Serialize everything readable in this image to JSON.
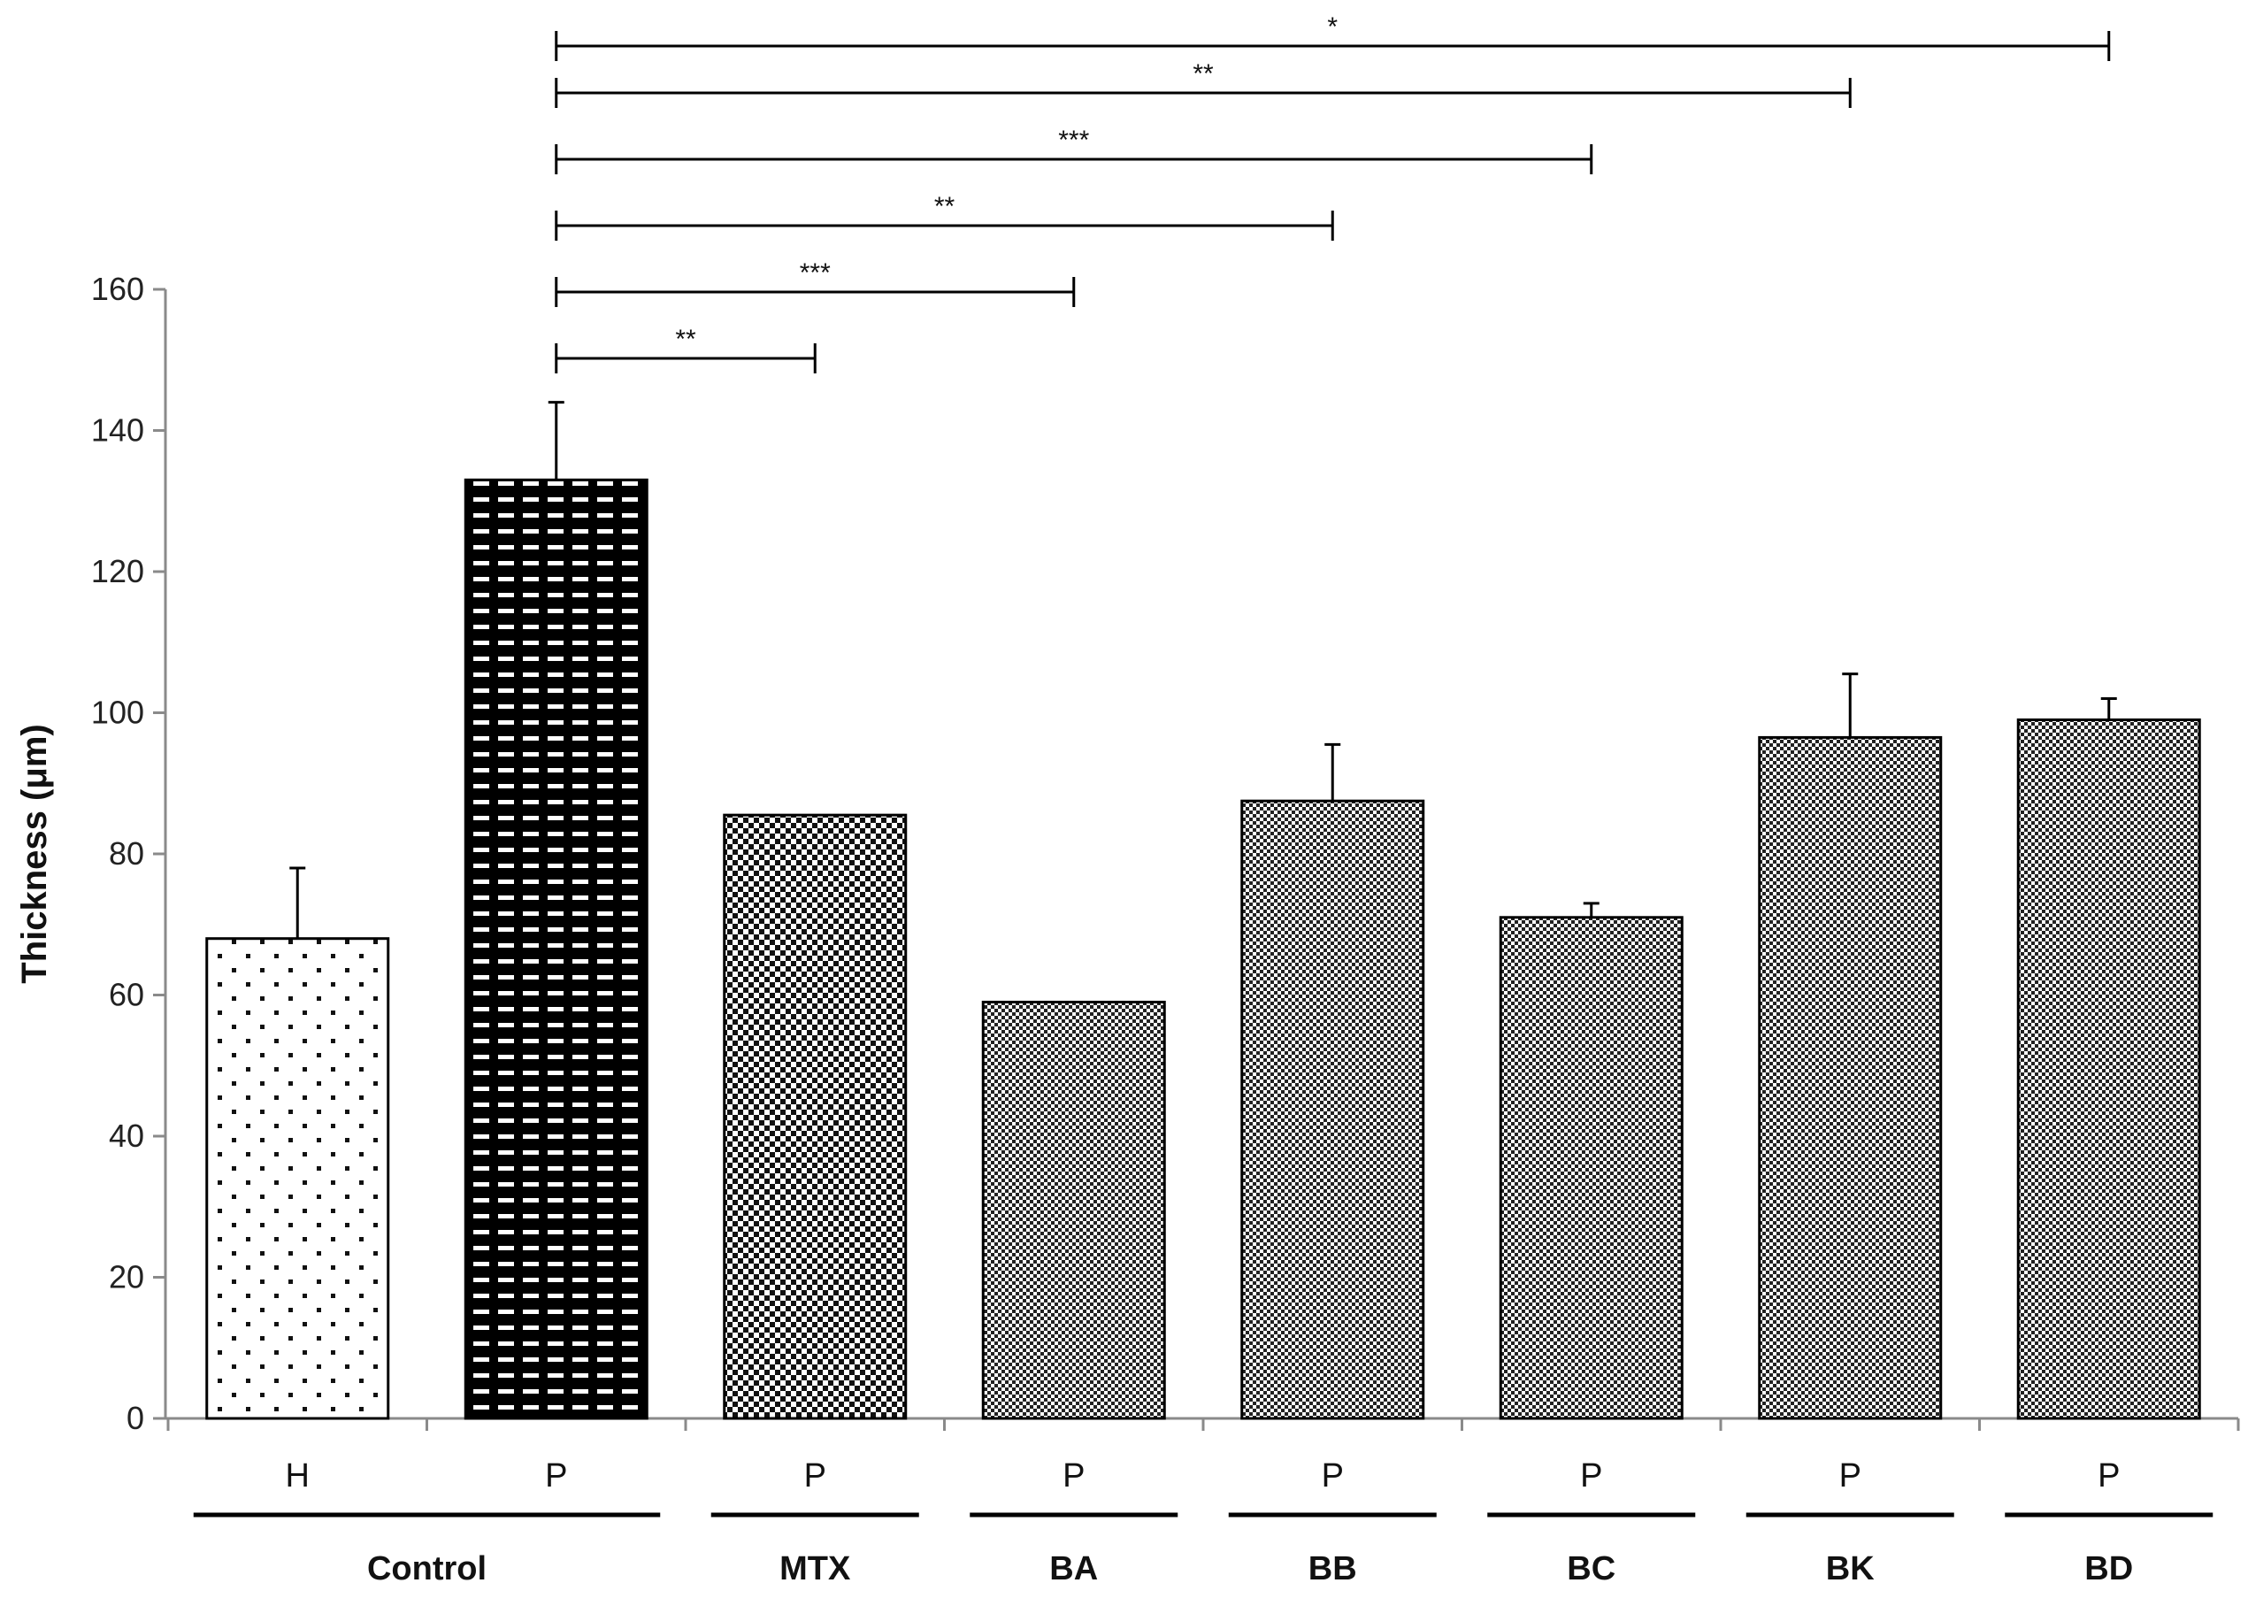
{
  "chart_data": {
    "type": "bar",
    "title": "",
    "xlabel": "",
    "ylabel": "Thickness (μm)",
    "ylim": [
      0,
      160
    ],
    "yticks": [
      0,
      20,
      40,
      60,
      80,
      100,
      120,
      140,
      160
    ],
    "grid": false,
    "bars": [
      {
        "label": "H",
        "group": "Control",
        "value": 68,
        "error": 10,
        "pattern": "dots"
      },
      {
        "label": "P",
        "group": "Control",
        "value": 133,
        "error": 11,
        "pattern": "dashes"
      },
      {
        "label": "P",
        "group": "MTX",
        "value": 85.5,
        "error": 0,
        "pattern": "coarse-check"
      },
      {
        "label": "P",
        "group": "BA",
        "value": 59,
        "error": 0,
        "pattern": "fine-check"
      },
      {
        "label": "P",
        "group": "BB",
        "value": 87.5,
        "error": 8,
        "pattern": "fine-check"
      },
      {
        "label": "P",
        "group": "BC",
        "value": 71,
        "error": 2,
        "pattern": "fine-check"
      },
      {
        "label": "P",
        "group": "BK",
        "value": 96.5,
        "error": 9,
        "pattern": "fine-check"
      },
      {
        "label": "P",
        "group": "BD",
        "value": 99,
        "error": 3,
        "pattern": "fine-check"
      }
    ],
    "groups": [
      {
        "name": "Control",
        "bars": [
          0,
          1
        ]
      },
      {
        "name": "MTX",
        "bars": [
          2
        ]
      },
      {
        "name": "BA",
        "bars": [
          3
        ]
      },
      {
        "name": "BB",
        "bars": [
          4
        ]
      },
      {
        "name": "BC",
        "bars": [
          5
        ]
      },
      {
        "name": "BK",
        "bars": [
          6
        ]
      },
      {
        "name": "BD",
        "bars": [
          7
        ]
      }
    ],
    "comparisons": [
      {
        "from": 1,
        "to": 2,
        "label": "**"
      },
      {
        "from": 1,
        "to": 3,
        "label": "***"
      },
      {
        "from": 1,
        "to": 4,
        "label": "**"
      },
      {
        "from": 1,
        "to": 5,
        "label": "***"
      },
      {
        "from": 1,
        "to": 6,
        "label": "**"
      },
      {
        "from": 1,
        "to": 7,
        "label": "*"
      }
    ]
  }
}
